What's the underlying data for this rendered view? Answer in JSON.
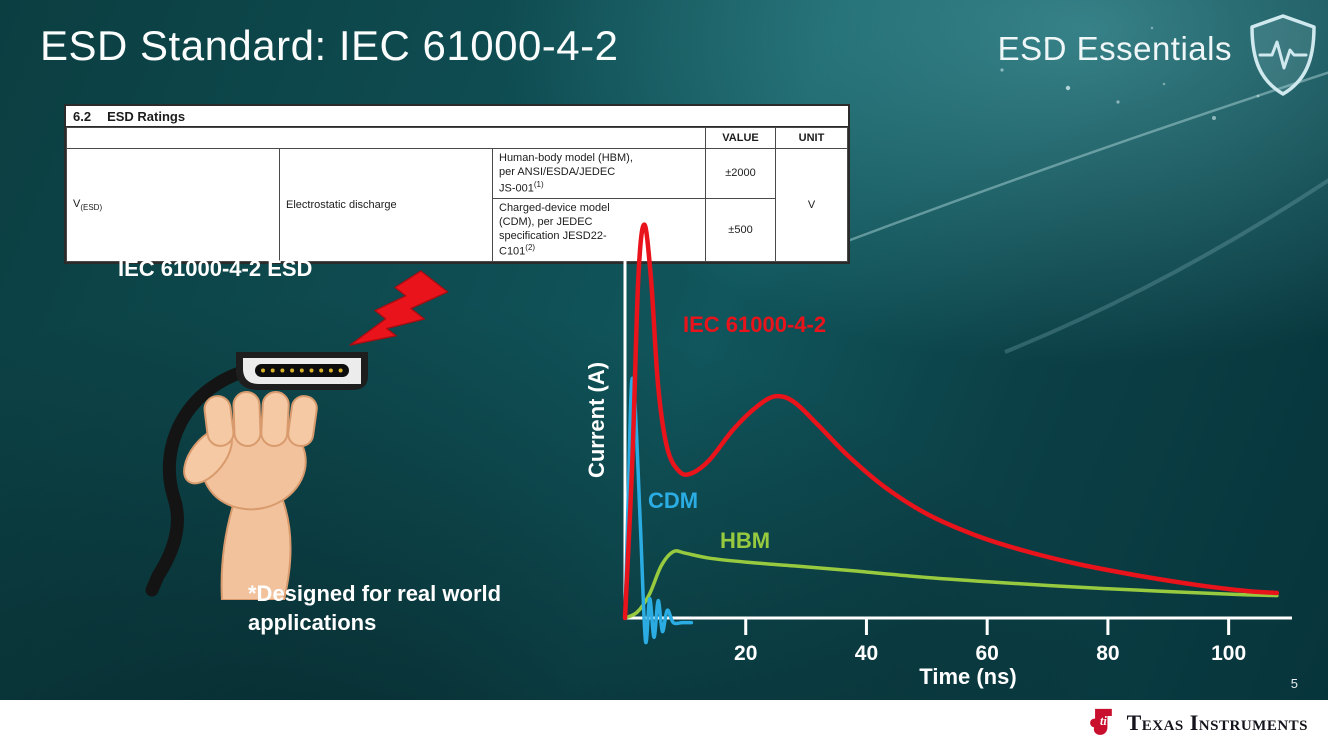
{
  "slide": {
    "title": "ESD Standard: IEC 61000-4-2",
    "series_brand": "ESD Essentials",
    "page_number": "5"
  },
  "ratings_table": {
    "section_number": "6.2",
    "section_title": "ESD Ratings",
    "value_header": "VALUE",
    "unit_header": "UNIT",
    "param_symbol": "V",
    "param_subscript": "(ESD)",
    "param_name": "Electrostatic discharge",
    "rows": [
      {
        "condition": "Human-body model (HBM), per ANSI/ESDA/JEDEC JS-001",
        "footnote": "(1)",
        "value": "±2000"
      },
      {
        "condition": "Charged-device model (CDM), per JEDEC specification JESD22-C101",
        "footnote": "(2)",
        "value": "±500"
      }
    ],
    "unit": "V"
  },
  "illustration": {
    "caption": "IEC 61000-4-2 ESD",
    "note": "*Designed for real world applications"
  },
  "chart_data": {
    "type": "line",
    "title": "",
    "xlabel": "Time (ns)",
    "ylabel": "Current (A)",
    "x_ticks": [
      20,
      40,
      60,
      80,
      100
    ],
    "xlim": [
      0,
      110
    ],
    "ylim": [
      0,
      10.5
    ],
    "grid": false,
    "legend_position": "inline-labels",
    "series": [
      {
        "name": "IEC 61000-4-2",
        "color": "#e8131b",
        "stroke_width": 4.5,
        "points": [
          [
            0,
            0
          ],
          [
            1.2,
            4.0
          ],
          [
            2.2,
            8.8
          ],
          [
            3.2,
            10.2
          ],
          [
            4.3,
            8.8
          ],
          [
            5.5,
            6.0
          ],
          [
            7,
            4.4
          ],
          [
            9,
            3.8
          ],
          [
            11,
            3.75
          ],
          [
            14,
            4.1
          ],
          [
            18,
            4.9
          ],
          [
            22,
            5.5
          ],
          [
            25,
            5.75
          ],
          [
            28,
            5.6
          ],
          [
            32,
            5.0
          ],
          [
            37,
            4.2
          ],
          [
            43,
            3.4
          ],
          [
            50,
            2.7
          ],
          [
            58,
            2.15
          ],
          [
            66,
            1.75
          ],
          [
            75,
            1.4
          ],
          [
            85,
            1.1
          ],
          [
            95,
            0.85
          ],
          [
            103,
            0.7
          ],
          [
            108,
            0.65
          ]
        ]
      },
      {
        "name": "CDM",
        "color": "#2bace2",
        "stroke_width": 3.5,
        "points": [
          [
            0,
            0
          ],
          [
            0.6,
            3.5
          ],
          [
            1.1,
            6.1
          ],
          [
            1.7,
            5.4
          ],
          [
            2.6,
            2.2
          ],
          [
            3.4,
            -0.6
          ],
          [
            4.1,
            0.5
          ],
          [
            4.8,
            -0.5
          ],
          [
            5.5,
            0.45
          ],
          [
            6.2,
            -0.35
          ],
          [
            7.0,
            0.2
          ],
          [
            8.0,
            -0.12
          ],
          [
            9.5,
            -0.12
          ],
          [
            11,
            -0.12
          ]
        ]
      },
      {
        "name": "HBM",
        "color": "#97ca3f",
        "stroke_width": 3.5,
        "points": [
          [
            0,
            0
          ],
          [
            2,
            0.15
          ],
          [
            4,
            0.6
          ],
          [
            6,
            1.35
          ],
          [
            8,
            1.72
          ],
          [
            10,
            1.68
          ],
          [
            14,
            1.55
          ],
          [
            20,
            1.45
          ],
          [
            28,
            1.35
          ],
          [
            38,
            1.22
          ],
          [
            50,
            1.05
          ],
          [
            62,
            0.92
          ],
          [
            75,
            0.8
          ],
          [
            88,
            0.7
          ],
          [
            100,
            0.62
          ],
          [
            108,
            0.58
          ]
        ]
      }
    ]
  },
  "footer": {
    "logo_text": "Texas Instruments",
    "logo_glyph": "ti"
  }
}
